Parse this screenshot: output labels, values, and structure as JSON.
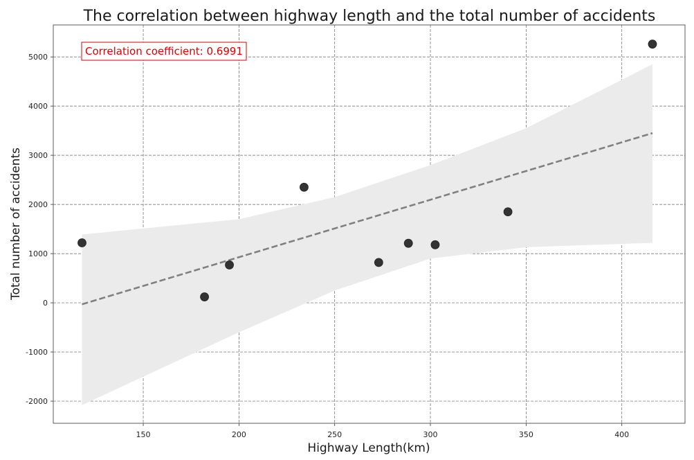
{
  "chart_data": {
    "type": "scatter",
    "title": "The correlation between highway length and the total number of accidents",
    "xlabel": "Highway Length(km)",
    "ylabel": "Total number of accidents",
    "xlim": [
      103,
      433
    ],
    "ylim": [
      -2450,
      5650
    ],
    "xticks": [
      150,
      200,
      250,
      300,
      350,
      400
    ],
    "yticks": [
      -2000,
      -1000,
      0,
      1000,
      2000,
      3000,
      4000,
      5000
    ],
    "grid": true,
    "annotation": "Correlation coefficient: 0.6991",
    "annotation_color": "#e00000",
    "point_color": "#333333",
    "regression_color": "#808080",
    "band_color": "#ebebeb",
    "points": [
      {
        "x": 118,
        "y": 1220
      },
      {
        "x": 182,
        "y": 120
      },
      {
        "x": 195,
        "y": 770
      },
      {
        "x": 234,
        "y": 2350
      },
      {
        "x": 273,
        "y": 820
      },
      {
        "x": 288.5,
        "y": 1210
      },
      {
        "x": 302.5,
        "y": 1180
      },
      {
        "x": 340.5,
        "y": 1850
      },
      {
        "x": 416,
        "y": 5260
      }
    ],
    "regression": {
      "x": [
        118,
        416
      ],
      "y": [
        -30,
        3450
      ]
    },
    "confidence_band": {
      "x": [
        118,
        200,
        250,
        300,
        350,
        416
      ],
      "upper": [
        1390,
        1700,
        2150,
        2800,
        3550,
        4850
      ],
      "lower": [
        -2080,
        -600,
        250,
        900,
        1130,
        1220
      ]
    }
  }
}
